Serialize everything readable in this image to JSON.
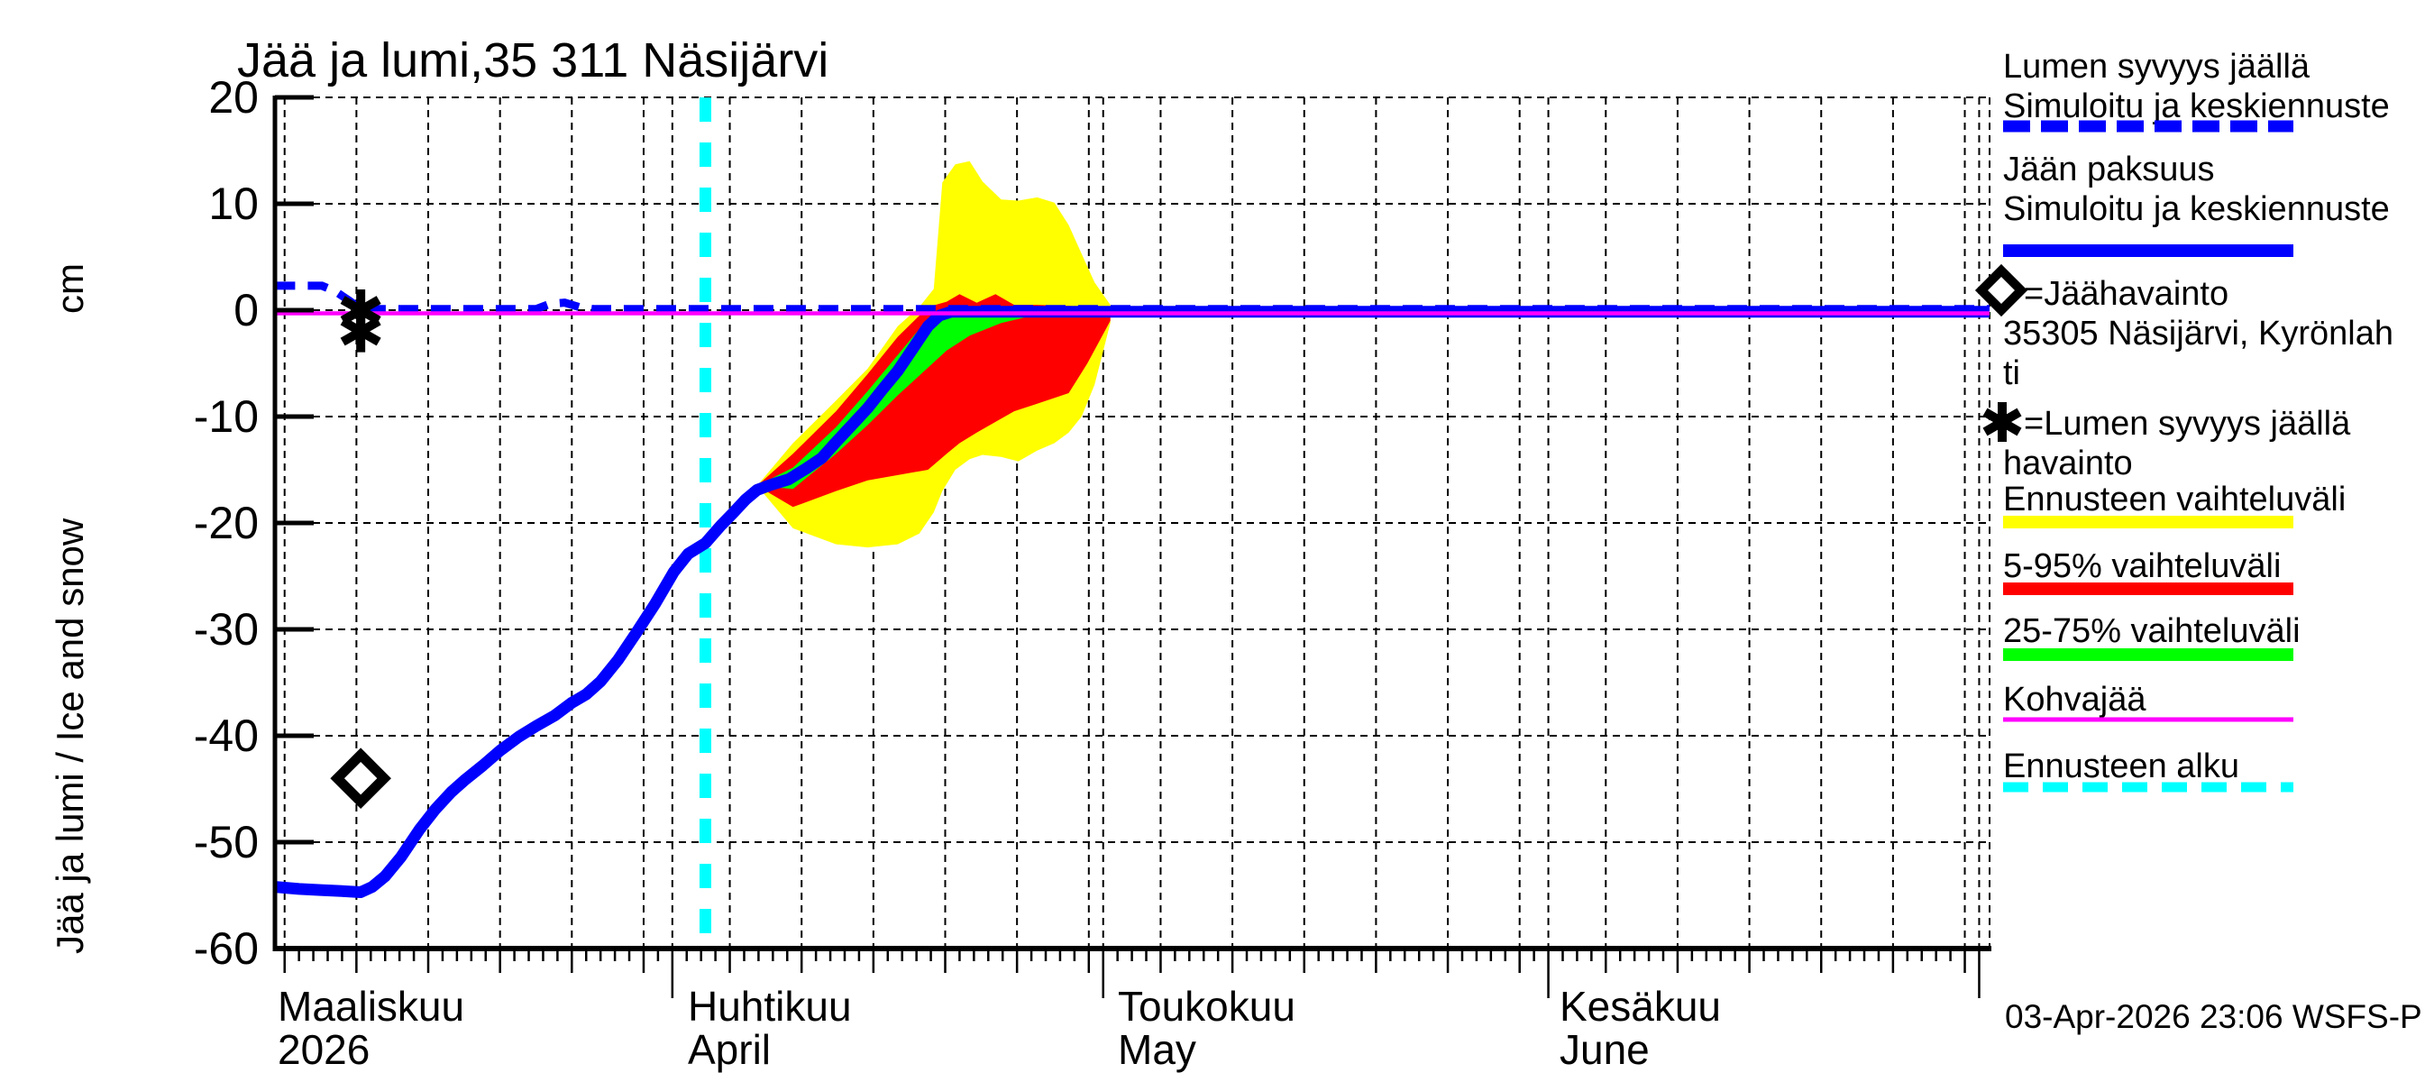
{
  "title": "Jää ja lumi,35 311 Näsijärvi",
  "timestamp": "03-Apr-2026 23:06 WSFS-P",
  "y_axis": {
    "unit_label": "cm",
    "axis_label": "Jää ja lumi / Ice and snow"
  },
  "x_axis": {
    "months": [
      {
        "line1": "Maaliskuu",
        "line2": "2026"
      },
      {
        "line1": "Huhtikuu",
        "line2": "April"
      },
      {
        "line1": "Toukokuu",
        "line2": "May"
      },
      {
        "line1": "Kesäkuu",
        "line2": "June"
      }
    ]
  },
  "legend": {
    "items": [
      {
        "lines": [
          "Lumen syvyys jäällä",
          "Simuloitu ja keskiennuste"
        ],
        "swatch": "dashed-line",
        "color": "#0000ff"
      },
      {
        "lines": [
          "Jään paksuus",
          "Simuloitu ja keskiennuste"
        ],
        "swatch": "solid-line",
        "color": "#0000ff"
      },
      {
        "lines": [
          "=Jäähavainto",
          "35305 Näsijärvi, Kyrönlah",
          "ti"
        ],
        "marker": "diamond",
        "color": "#000000"
      },
      {
        "lines": [
          "=Lumen syvyys jäällä",
          "havainto"
        ],
        "marker": "asterisk",
        "color": "#000000"
      },
      {
        "lines": [
          "Ennusteen vaihteluväli"
        ],
        "swatch": "bar",
        "color": "#ffff00"
      },
      {
        "lines": [
          "5-95% vaihteluväli"
        ],
        "swatch": "bar",
        "color": "#ff0000"
      },
      {
        "lines": [
          "25-75% vaihteluväli"
        ],
        "swatch": "bar",
        "color": "#00ff00"
      },
      {
        "lines": [
          "Kohvajää"
        ],
        "swatch": "thin-line",
        "color": "#ff00ff"
      },
      {
        "lines": [
          "Ennusteen alku"
        ],
        "swatch": "dashed-line",
        "color": "#00ffff"
      }
    ]
  },
  "colors": {
    "simulated_and_mean_forecast": "#0000ff",
    "kohvajaa": "#ff00ff",
    "forecast_start": "#00ffff",
    "forecast_range": "#ffff00",
    "range_5_95": "#ff0000",
    "range_25_75": "#00ff00",
    "axis_and_text": "#000000"
  },
  "chart_data": {
    "type": "line",
    "title": "Jää ja lumi,35 311 Näsijärvi",
    "ylabel": "Jää ja lumi / Ice and snow (cm)",
    "xlabel": "Maaliskuu 2026 - Kesäkuu 2026",
    "x_unit": "days since 2026-03-01",
    "y_unit": "cm",
    "ylim": [
      -60,
      20
    ],
    "xlim_days": [
      3.33,
      122.72
    ],
    "grid": "dashed",
    "legend_position": "right",
    "y_ticks": [
      20,
      10,
      0,
      -10,
      -20,
      -30,
      -40,
      -50,
      -60
    ],
    "month_tick_days": [
      31,
      61,
      92,
      122
    ],
    "month_label_days": [
      3.5,
      32.1,
      62.0,
      92.8
    ],
    "forecast_start_day": 33.3,
    "kohvajaa_level_cm": 0,
    "series": [
      {
        "name": "ice_thickness_simulated_and_mean_forecast",
        "style": "solid-blue",
        "points": [
          [
            3.35,
            -54.2
          ],
          [
            5,
            -54.4
          ],
          [
            6.5,
            -54.5
          ],
          [
            8,
            -54.6
          ],
          [
            9.3,
            -54.7
          ],
          [
            10.1,
            -54.2
          ],
          [
            11,
            -53.2
          ],
          [
            12.1,
            -51.4
          ],
          [
            13.4,
            -48.8
          ],
          [
            14.5,
            -46.9
          ],
          [
            15.6,
            -45.3
          ],
          [
            16.6,
            -44.1
          ],
          [
            17.8,
            -42.8
          ],
          [
            19,
            -41.4
          ],
          [
            20.3,
            -40.1
          ],
          [
            21.5,
            -39.1
          ],
          [
            22.8,
            -38.1
          ],
          [
            24,
            -36.9
          ],
          [
            25,
            -36.1
          ],
          [
            26,
            -34.9
          ],
          [
            27.2,
            -32.9
          ],
          [
            28.5,
            -30.3
          ],
          [
            29.8,
            -27.6
          ],
          [
            31.1,
            -24.6
          ],
          [
            32.1,
            -22.9
          ],
          [
            33.3,
            -21.9
          ],
          [
            34.4,
            -20.2
          ],
          [
            35.2,
            -19.1
          ],
          [
            36.1,
            -17.8
          ],
          [
            36.9,
            -16.9
          ],
          [
            37.9,
            -16.4
          ],
          [
            39.1,
            -15.9
          ],
          [
            40.3,
            -14.9
          ],
          [
            41.4,
            -13.9
          ],
          [
            42.4,
            -12.4
          ],
          [
            43.5,
            -10.8
          ],
          [
            44.6,
            -9.2
          ],
          [
            45.6,
            -7.5
          ],
          [
            46.7,
            -5.7
          ],
          [
            47.8,
            -3.5
          ],
          [
            48.8,
            -1.5
          ],
          [
            49.6,
            -0.5
          ],
          [
            50.4,
            -0.15
          ],
          [
            122.72,
            -0.15
          ]
        ]
      },
      {
        "name": "snow_depth_on_ice_simulated_and_mean_forecast",
        "style": "dashed-blue",
        "points": [
          [
            3.35,
            2.3
          ],
          [
            6.6,
            2.3
          ],
          [
            7.5,
            1.8
          ],
          [
            8.5,
            0.9
          ],
          [
            9.3,
            0.1
          ],
          [
            21.5,
            0.1
          ],
          [
            22.5,
            0.6
          ],
          [
            23.5,
            0.7
          ],
          [
            24.5,
            0.3
          ],
          [
            25.5,
            0.1
          ],
          [
            122.72,
            0.1
          ]
        ]
      }
    ],
    "bands": [
      {
        "name": "forecast_range",
        "color": "#ffff00",
        "points_day_top_bottom": [
          [
            36.9,
            -16.5,
            -16.5
          ],
          [
            39.4,
            -12.5,
            -20.5
          ],
          [
            42.4,
            -8.5,
            -22
          ],
          [
            44.6,
            -5.5,
            -22.3
          ],
          [
            46.7,
            -1.5,
            -22
          ],
          [
            48.2,
            0.3,
            -21
          ],
          [
            49.2,
            2,
            -19
          ],
          [
            49.8,
            12,
            -17
          ],
          [
            50.7,
            13.7,
            -15
          ],
          [
            51.7,
            14,
            -14
          ],
          [
            52.6,
            12.1,
            -13.6
          ],
          [
            53.9,
            10.4,
            -13.8
          ],
          [
            55.1,
            10.3,
            -14.2
          ],
          [
            56.4,
            10.6,
            -13.2
          ],
          [
            57.6,
            10.1,
            -12.5
          ],
          [
            58.6,
            8,
            -11.5
          ],
          [
            59.5,
            5.3,
            -10
          ],
          [
            60.4,
            2.6,
            -7
          ],
          [
            61.5,
            0.5,
            -1.2
          ]
        ]
      },
      {
        "name": "range_5_95",
        "color": "#ff0000",
        "points_day_top_bottom": [
          [
            36.9,
            -16.5,
            -16.5
          ],
          [
            39.4,
            -13.5,
            -18.5
          ],
          [
            42.4,
            -9.5,
            -17
          ],
          [
            44.6,
            -6,
            -16
          ],
          [
            46.7,
            -2.5,
            -15.5
          ],
          [
            48.8,
            0.3,
            -15
          ],
          [
            50.1,
            0.8,
            -13.5
          ],
          [
            51,
            1.5,
            -12.5
          ],
          [
            52.2,
            0.7,
            -11.5
          ],
          [
            53.5,
            1.5,
            -10.5
          ],
          [
            54.8,
            0.5,
            -9.5
          ],
          [
            56.4,
            0.5,
            -8.8
          ],
          [
            58.6,
            0.4,
            -7.8
          ],
          [
            59.9,
            0.3,
            -5
          ],
          [
            61.5,
            0.2,
            -1
          ]
        ]
      },
      {
        "name": "range_25_75",
        "color": "#00ff00",
        "points_day_top_bottom": [
          [
            36.9,
            -16.5,
            -16.5
          ],
          [
            39.4,
            -14.8,
            -16.8
          ],
          [
            42.4,
            -11,
            -13.5
          ],
          [
            44.6,
            -7.6,
            -10.8
          ],
          [
            46.7,
            -4.2,
            -8
          ],
          [
            48.8,
            -0.8,
            -5.4
          ],
          [
            50.1,
            0,
            -3.8
          ],
          [
            51.7,
            -0.1,
            -2.4
          ],
          [
            53.9,
            -0.1,
            -1.2
          ],
          [
            55.8,
            -0.1,
            -0.6
          ],
          [
            57.5,
            -0.1,
            -0.2
          ]
        ]
      }
    ],
    "observations": {
      "ice_observation_diamond": [
        {
          "day": 9.3,
          "cm": -44
        }
      ],
      "snow_depth_observation_asterisk": [
        {
          "day": 9.3,
          "cm": 0
        },
        {
          "day": 9.3,
          "cm": -2
        }
      ]
    }
  }
}
